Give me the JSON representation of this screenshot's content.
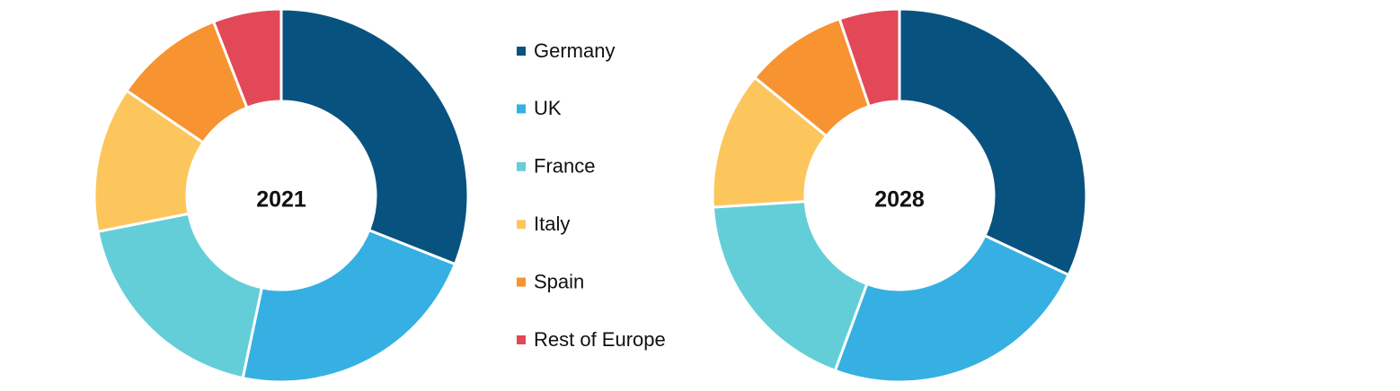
{
  "chart_data": [
    {
      "type": "donut",
      "title": "2021",
      "categories": [
        "Germany",
        "UK",
        "France",
        "Italy",
        "Spain",
        "Rest of Europe"
      ],
      "values": [
        31,
        22.3,
        18.6,
        12.6,
        9.6,
        5.9
      ],
      "colors": [
        "#08527f",
        "#36b0e2",
        "#64ced8",
        "#fdc65c",
        "#f79331",
        "#e24858"
      ],
      "legend": true
    },
    {
      "type": "donut",
      "title": "2028",
      "categories": [
        "Germany",
        "UK",
        "France",
        "Italy",
        "Spain",
        "Rest of Europe"
      ],
      "values": [
        32,
        23.6,
        18.4,
        11.9,
        8.9,
        5.2
      ],
      "colors": [
        "#08527f",
        "#36b0e2",
        "#64ced8",
        "#fdc65c",
        "#f79331",
        "#e24858"
      ],
      "legend": false
    }
  ]
}
